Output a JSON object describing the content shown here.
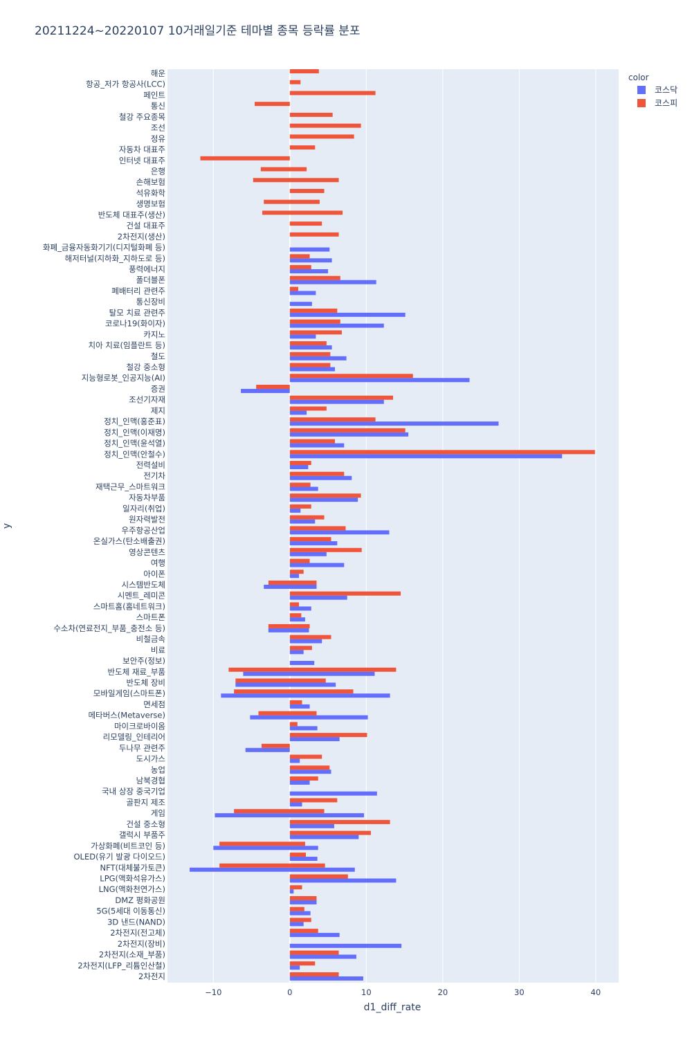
{
  "chart_data": {
    "type": "bar",
    "orientation": "horizontal",
    "title": "20211224~20220107 10거래일기준 테마별 종목 등락률 분포",
    "xlabel": "d1_diff_rate",
    "ylabel": "y",
    "xlim": [
      -16.0,
      43.0
    ],
    "x_ticks": [
      -10,
      0,
      10,
      20,
      30,
      40
    ],
    "x_tick_labels": [
      "−10",
      "0",
      "10",
      "20",
      "30",
      "40"
    ],
    "grid": true,
    "legend_title": "color",
    "legend_position": "top-right",
    "categories": [
      "해운",
      "항공_저가 항공사(LCC)",
      "페인트",
      "통신",
      "철강 주요종목",
      "조선",
      "정유",
      "자동차 대표주",
      "인터넷 대표주",
      "은행",
      "손해보험",
      "석유화학",
      "생명보험",
      "반도체 대표주(생산)",
      "건설 대표주",
      "2차전지(생산)",
      "화폐_금융자동화기기(디지털화폐 등)",
      "해저터널(지하화_지하도로 등)",
      "풍력에너지",
      "폴더블폰",
      "폐배터리 관련주",
      "통신장비",
      "탈모 치료 관련주",
      "코로나19(화이자)",
      "카지노",
      "치아 치료(임플란트 등)",
      "철도",
      "철강 중소형",
      "지능형로봇_인공지능(AI)",
      "증권",
      "조선기자재",
      "제지",
      "정치_인맥(홍준표)",
      "정치_인맥(이재명)",
      "정치_인맥(윤석열)",
      "정치_인맥(안철수)",
      "전력설비",
      "전기차",
      "재택근무_스마트워크",
      "자동차부품",
      "일자리(취업)",
      "원자력발전",
      "우주항공산업",
      "온실가스(탄소배출권)",
      "영상콘텐츠",
      "여행",
      "아이폰",
      "시스템반도체",
      "시멘트_레미콘",
      "스마트홈(홈네트워크)",
      "스마트폰",
      "수소차(연료전지_부품_충전소 등)",
      "비철금속",
      "비료",
      "보안주(정보)",
      "반도체 재료_부품",
      "반도체 장비",
      "모바일게임(스마트폰)",
      "면세점",
      "메타버스(Metaverse)",
      "마이크로바이옴",
      "리모델링_인테리어",
      "두나무 관련주",
      "도시가스",
      "농업",
      "남북경협",
      "국내 상장 중국기업",
      "골판지 제조",
      "게임",
      "건설 중소형",
      "갤럭시 부품주",
      "가상화폐(비트코인 등)",
      "OLED(유기 발광 다이오드)",
      "NFT(대체불가토큰)",
      "LPG(액화석유가스)",
      "LNG(액화천연가스)",
      "DMZ 평화공원",
      "5G(5세대 이동통신)",
      "3D 낸드(NAND)",
      "2차전지(전고체)",
      "2차전지(장비)",
      "2차전지(소재_부품)",
      "2차전지(LFP_리튬인산철)",
      "2차전지"
    ],
    "series": [
      {
        "name": "코스닥",
        "color": "#636efa",
        "ranges": [
          null,
          null,
          null,
          null,
          null,
          null,
          null,
          null,
          null,
          null,
          null,
          null,
          null,
          null,
          null,
          null,
          [
            0,
            5.2
          ],
          [
            0,
            5.5
          ],
          [
            0,
            5.0
          ],
          [
            0,
            11.3
          ],
          [
            0,
            3.4
          ],
          [
            0,
            2.9
          ],
          [
            0,
            15.1
          ],
          [
            0,
            12.3
          ],
          [
            0,
            3.4
          ],
          [
            0,
            5.5
          ],
          [
            0,
            7.4
          ],
          [
            0,
            5.9
          ],
          [
            0,
            23.5
          ],
          [
            -6.4,
            0
          ],
          [
            0,
            12.3
          ],
          [
            0,
            2.2
          ],
          [
            0,
            27.3
          ],
          [
            0,
            15.5
          ],
          [
            0,
            7.1
          ],
          [
            0,
            35.6
          ],
          [
            0,
            2.4
          ],
          [
            0,
            8.1
          ],
          [
            0,
            3.7
          ],
          [
            0,
            8.9
          ],
          [
            0,
            1.4
          ],
          [
            0,
            3.3
          ],
          [
            0,
            13.0
          ],
          [
            0,
            6.2
          ],
          [
            0,
            4.8
          ],
          [
            0,
            7.1
          ],
          [
            0,
            1.2
          ],
          [
            -3.4,
            3.5
          ],
          [
            0,
            7.5
          ],
          [
            0,
            2.8
          ],
          [
            0,
            2.0
          ],
          [
            -2.8,
            2.5
          ],
          [
            0,
            4.2
          ],
          [
            0,
            1.8
          ],
          [
            0,
            3.2
          ],
          [
            -6.1,
            11.1
          ],
          [
            -7.1,
            6.0
          ],
          [
            -9.0,
            13.1
          ],
          [
            0,
            2.6
          ],
          [
            -5.2,
            10.2
          ],
          [
            0,
            3.6
          ],
          [
            0,
            6.5
          ],
          [
            -5.8,
            0
          ],
          [
            0,
            1.3
          ],
          [
            0,
            5.4
          ],
          [
            0,
            2.6
          ],
          [
            0,
            11.4
          ],
          [
            0,
            1.6
          ],
          [
            -9.8,
            9.7
          ],
          [
            0,
            5.8
          ],
          [
            0,
            9.0
          ],
          [
            -10.0,
            3.7
          ],
          [
            0,
            3.6
          ],
          [
            -13.1,
            8.5
          ],
          [
            0,
            13.9
          ],
          [
            0,
            0.5
          ],
          [
            0,
            3.5
          ],
          [
            0,
            2.7
          ],
          [
            0,
            1.8
          ],
          [
            0,
            6.5
          ],
          [
            0,
            14.6
          ],
          [
            0,
            8.7
          ],
          [
            0,
            1.3
          ],
          [
            0,
            9.6
          ]
        ]
      },
      {
        "name": "코스피",
        "color": "#ef553b",
        "ranges": [
          [
            0,
            3.8
          ],
          [
            0,
            1.4
          ],
          [
            0,
            11.2
          ],
          [
            -4.6,
            0
          ],
          [
            0,
            5.6
          ],
          [
            0,
            9.3
          ],
          [
            0,
            8.4
          ],
          [
            0,
            3.3
          ],
          [
            -11.7,
            0
          ],
          [
            -3.8,
            2.2
          ],
          [
            -4.8,
            6.4
          ],
          [
            0,
            4.5
          ],
          [
            -3.4,
            3.9
          ],
          [
            -3.6,
            6.9
          ],
          [
            0,
            4.2
          ],
          [
            0,
            6.4
          ],
          null,
          [
            0,
            2.6
          ],
          [
            0,
            2.8
          ],
          [
            0,
            6.6
          ],
          [
            0,
            1.1
          ],
          null,
          [
            0,
            6.2
          ],
          [
            0,
            6.6
          ],
          [
            0,
            6.8
          ],
          [
            0,
            4.8
          ],
          [
            0,
            5.3
          ],
          [
            0,
            5.3
          ],
          [
            0,
            16.1
          ],
          [
            -4.4,
            0
          ],
          [
            0,
            13.5
          ],
          [
            0,
            4.8
          ],
          [
            0,
            11.2
          ],
          [
            0,
            15.1
          ],
          [
            0,
            5.9
          ],
          [
            0,
            39.9
          ],
          [
            0,
            2.8
          ],
          [
            0,
            7.1
          ],
          [
            0,
            2.7
          ],
          [
            0,
            9.3
          ],
          [
            0,
            2.8
          ],
          [
            0,
            4.5
          ],
          [
            0,
            7.3
          ],
          [
            0,
            5.4
          ],
          [
            0,
            9.4
          ],
          [
            0,
            2.6
          ],
          [
            0,
            1.8
          ],
          [
            -2.8,
            3.5
          ],
          [
            0,
            14.5
          ],
          [
            0,
            1.2
          ],
          [
            0,
            1.5
          ],
          [
            -2.8,
            2.6
          ],
          [
            0,
            5.4
          ],
          [
            0,
            2.9
          ],
          null,
          [
            -8.0,
            13.9
          ],
          [
            -7.1,
            4.7
          ],
          [
            -7.3,
            8.3
          ],
          [
            0,
            1.6
          ],
          [
            -4.1,
            3.5
          ],
          [
            0,
            1.0
          ],
          [
            0,
            10.1
          ],
          [
            -3.7,
            0
          ],
          [
            0,
            4.2
          ],
          [
            0,
            5.2
          ],
          [
            0,
            3.7
          ],
          null,
          [
            0,
            6.2
          ],
          [
            -7.3,
            4.5
          ],
          [
            0,
            13.1
          ],
          [
            0,
            10.6
          ],
          [
            -9.2,
            2.0
          ],
          [
            0,
            2.1
          ],
          [
            -9.2,
            4.6
          ],
          [
            0,
            7.6
          ],
          [
            0,
            1.6
          ],
          [
            0,
            3.5
          ],
          [
            0,
            1.9
          ],
          [
            0,
            2.8
          ],
          [
            0,
            3.7
          ],
          null,
          [
            0,
            6.4
          ],
          [
            0,
            3.3
          ],
          [
            0,
            6.4
          ]
        ]
      }
    ]
  }
}
